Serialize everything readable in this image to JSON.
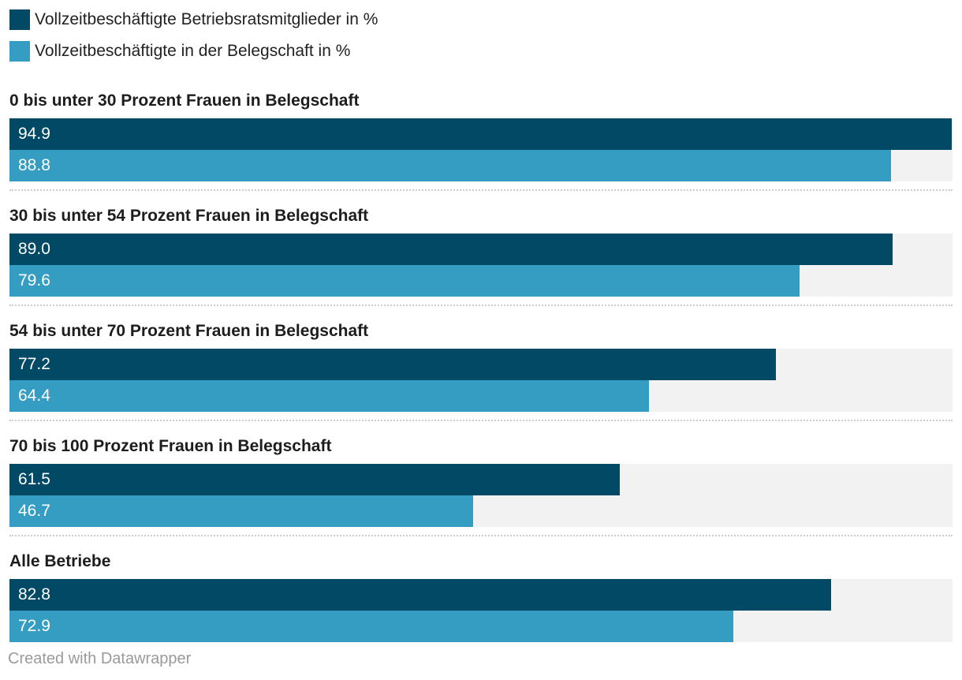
{
  "colors": {
    "series1": "#014965",
    "series2": "#359dc2",
    "track": "#f2f2f2"
  },
  "chart_data": {
    "type": "bar",
    "orientation": "horizontal",
    "title": "",
    "xlim": [
      0,
      95
    ],
    "categories": [
      "0 bis unter 30 Prozent Frauen in Belegschaft",
      "30 bis unter 54 Prozent Frauen in Belegschaft",
      "54 bis unter 70 Prozent Frauen in Belegschaft",
      "70 bis 100 Prozent Frauen in Belegschaft",
      "Alle Betriebe"
    ],
    "series": [
      {
        "name": "Vollzeitbeschäftigte Betriebsratsmitglieder in %",
        "values": [
          94.9,
          89.0,
          77.2,
          61.5,
          82.8
        ],
        "labels": [
          "94.9",
          "89.0",
          "77.2",
          "61.5",
          "82.8"
        ]
      },
      {
        "name": "Vollzeitbeschäftigte in der Belegschaft in %",
        "values": [
          88.8,
          79.6,
          64.4,
          46.7,
          72.9
        ],
        "labels": [
          "88.8",
          "79.6",
          "64.4",
          "46.7",
          "72.9"
        ]
      }
    ]
  },
  "footer": "Created with Datawrapper"
}
